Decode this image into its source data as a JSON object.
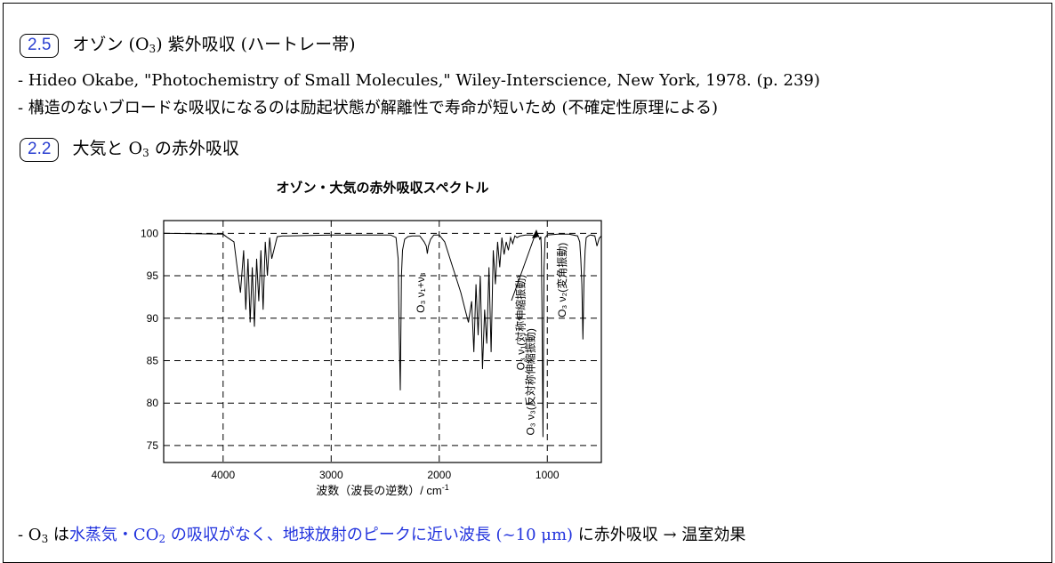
{
  "sections": [
    {
      "badge": "2.5",
      "title_pre": "オゾン (O",
      "title_sub": "3",
      "title_post": ") 紫外吸収 (ハートレー帯)",
      "lines": [
        "- Hideo Okabe, \"Photochemistry of Small Molecules,\" Wiley-Interscience, New York, 1978. (p. 239)",
        "- 構造のないブロードな吸収になるのは励起状態が解離性で寿命が短いため (不確定性原理による)"
      ]
    },
    {
      "badge": "2.2",
      "title_pre": "大気と O",
      "title_sub": "3",
      "title_post": " の赤外吸収"
    }
  ],
  "conclusion": {
    "p1": "- O",
    "p1_sub": "3",
    "p2": " は",
    "p3_blue": "水蒸気・CO",
    "p3_sub": "2",
    "p4_blue": " の吸収がなく、地球放射のピークに近い波長 (~10 μm)",
    "p5": " に赤外吸収 → 温室効果"
  },
  "chart_data": {
    "type": "line",
    "title": "オゾン・大気の赤外吸収スペクトル",
    "xlabel": "波数（波長の逆数）/ cm",
    "xlabel_sup": "-1",
    "ylabel": "",
    "xlim": [
      4550,
      500
    ],
    "ylim": [
      73,
      101.5
    ],
    "xticks": [
      4000,
      3000,
      2000,
      1000
    ],
    "yticks": [
      75,
      80,
      85,
      90,
      95,
      100
    ],
    "grid": true,
    "series": [
      {
        "x": [
          4550,
          4000,
          3960,
          3900,
          3870,
          3840,
          3810,
          3790,
          3770,
          3750,
          3730,
          3710,
          3690,
          3670,
          3650,
          3630,
          3610,
          3590,
          3570,
          3550,
          3500,
          3450,
          3400,
          3000,
          2450,
          2400,
          2380,
          2370,
          2360,
          2350,
          2340,
          2320,
          2290,
          2250,
          2180,
          2140,
          2120,
          2110,
          2100,
          2080,
          2050,
          2000,
          1950,
          1900,
          1850,
          1800,
          1760,
          1730,
          1700,
          1680,
          1660,
          1640,
          1620,
          1600,
          1580,
          1560,
          1540,
          1520,
          1500,
          1480,
          1460,
          1440,
          1420,
          1400,
          1380,
          1360,
          1340,
          1320,
          1300,
          1280,
          1250,
          1200,
          1150,
          1120,
          1110,
          1100,
          1080,
          1070,
          1060,
          1055,
          1050,
          1045,
          1040,
          1035,
          1030,
          1020,
          1000,
          900,
          800,
          720,
          700,
          690,
          680,
          670,
          660,
          650,
          640,
          620,
          600,
          560,
          540,
          520,
          500
        ],
        "y": [
          100,
          99.9,
          99.5,
          99,
          96,
          93,
          98,
          91,
          97,
          89.5,
          96,
          89,
          97,
          92,
          98,
          91,
          99,
          95,
          99.5,
          97,
          99.6,
          99.7,
          99.7,
          99.8,
          99.8,
          99.5,
          97,
          88,
          81.5,
          95,
          98,
          99.3,
          99.6,
          99.7,
          99.7,
          99,
          98.5,
          97.6,
          98.5,
          99.3,
          99.8,
          99.8,
          99,
          97,
          95,
          93,
          91,
          89.5,
          92,
          86,
          94,
          88,
          95,
          84,
          91,
          87,
          96,
          86,
          98,
          94,
          99,
          96,
          99.5,
          97.5,
          99,
          98,
          99.5,
          98.8,
          99.7,
          99.5,
          99.7,
          99.8,
          99.8,
          99.7,
          99.5,
          99.7,
          99.7,
          99.3,
          99.6,
          98,
          92,
          84,
          76,
          86,
          96,
          99.5,
          99.8,
          99.9,
          99.9,
          99.7,
          99,
          97,
          94,
          87.5,
          95,
          98,
          99.5,
          99.7,
          99.8,
          99.7,
          98.5,
          99.4,
          99.7
        ]
      }
    ],
    "annotations": [
      {
        "text": "O₃ ν₁+ν₃",
        "x": 2140,
        "y": 93
      },
      {
        "text": "O₃ ν₁(対称伸縮振動)",
        "x": 1210,
        "y": 89.5
      },
      {
        "text": "O₃ ν₃(反対称伸縮振動)",
        "x": 1120,
        "y": 82.5
      },
      {
        "text": "O₃ ν₂(変角振動)",
        "x": 830,
        "y": 94.5
      }
    ]
  }
}
